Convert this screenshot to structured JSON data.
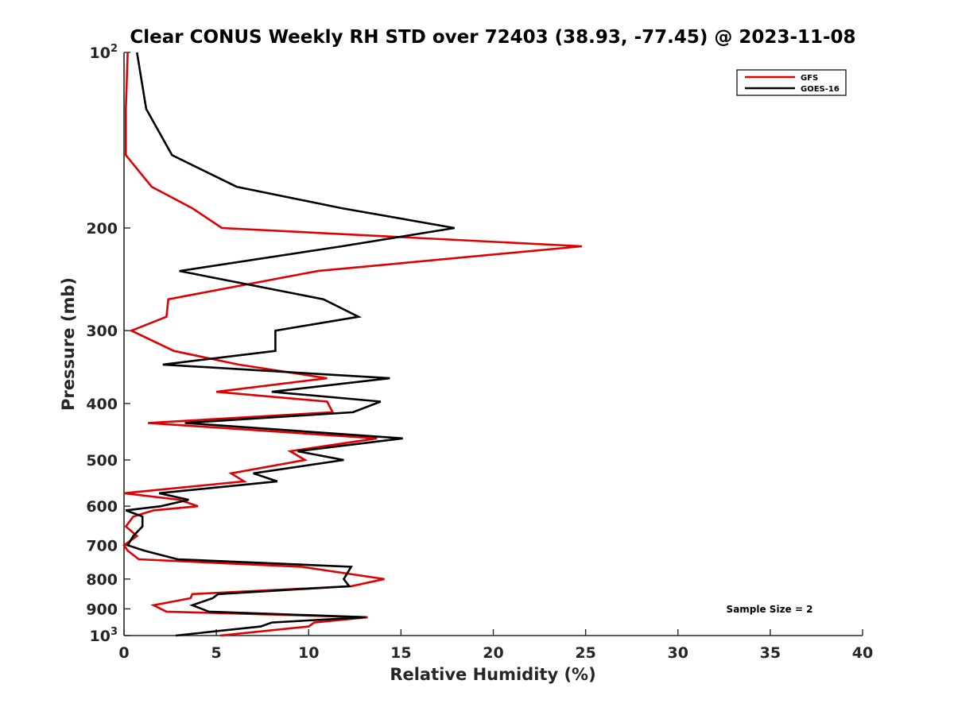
{
  "chart_data": {
    "type": "line",
    "orientation": "profile (x = relative humidity, y = pressure, y reversed, log scale)",
    "title": "Clear CONUS Weekly RH STD over 72403 (38.93, -77.45) @ 2023-11-08",
    "xlabel": "Relative Humidity (%)",
    "ylabel": "Pressure (mb)",
    "xlim": [
      0,
      40
    ],
    "ylim": [
      100,
      1000
    ],
    "y_scale": "log",
    "y_reversed": true,
    "x_ticks": [
      0,
      5,
      10,
      15,
      20,
      25,
      30,
      35,
      40
    ],
    "y_ticks": [
      100,
      200,
      300,
      400,
      500,
      600,
      700,
      800,
      900,
      1000
    ],
    "y_tick_labels": {
      "100": {
        "base": "10",
        "exp": "2"
      },
      "200": "200",
      "300": "300",
      "400": "400",
      "500": "500",
      "600": "600",
      "700": "700",
      "800": "800",
      "900": "900",
      "1000": {
        "base": "10",
        "exp": "3"
      }
    },
    "grid": false,
    "legend_position": "top-right",
    "annotation": "Sample Size = 2",
    "series": [
      {
        "name": "GFS",
        "color": "#e00000",
        "points": [
          [
            0.2,
            100
          ],
          [
            0.1,
            125
          ],
          [
            0.1,
            150
          ],
          [
            1.5,
            170
          ],
          [
            3.7,
            185
          ],
          [
            5.3,
            200
          ],
          [
            24.8,
            215
          ],
          [
            10.5,
            237
          ],
          [
            2.4,
            265
          ],
          [
            2.3,
            284
          ],
          [
            0.4,
            300
          ],
          [
            2.7,
            325
          ],
          [
            6.2,
            343
          ],
          [
            11.0,
            362
          ],
          [
            5.0,
            382
          ],
          [
            11.0,
            397
          ],
          [
            11.3,
            414
          ],
          [
            1.3,
            432
          ],
          [
            13.7,
            459
          ],
          [
            9.0,
            483
          ],
          [
            9.8,
            500
          ],
          [
            5.8,
            527
          ],
          [
            6.5,
            544
          ],
          [
            0.0,
            570
          ],
          [
            3.0,
            585
          ],
          [
            4.0,
            600
          ],
          [
            1.6,
            610
          ],
          [
            0.5,
            625
          ],
          [
            0.1,
            650
          ],
          [
            0.7,
            675
          ],
          [
            0.0,
            700
          ],
          [
            0.2,
            715
          ],
          [
            0.8,
            740
          ],
          [
            9.6,
            762
          ],
          [
            14.1,
            800
          ],
          [
            12.3,
            823
          ],
          [
            3.7,
            849
          ],
          [
            3.6,
            863
          ],
          [
            1.6,
            887
          ],
          [
            2.3,
            910
          ],
          [
            13.2,
            930
          ],
          [
            10.3,
            950
          ],
          [
            10.0,
            965
          ],
          [
            5.2,
            1000
          ]
        ]
      },
      {
        "name": "GOES-16",
        "color": "#000000",
        "points": [
          [
            0.7,
            100
          ],
          [
            1.2,
            125
          ],
          [
            2.6,
            150
          ],
          [
            6.1,
            170
          ],
          [
            11.8,
            185
          ],
          [
            17.9,
            200
          ],
          [
            11.8,
            215
          ],
          [
            3.0,
            237
          ],
          [
            10.8,
            265
          ],
          [
            12.7,
            284
          ],
          [
            8.2,
            300
          ],
          [
            8.2,
            325
          ],
          [
            2.1,
            343
          ],
          [
            14.4,
            362
          ],
          [
            8.0,
            382
          ],
          [
            13.9,
            397
          ],
          [
            12.4,
            414
          ],
          [
            3.3,
            432
          ],
          [
            15.1,
            459
          ],
          [
            9.4,
            483
          ],
          [
            11.9,
            500
          ],
          [
            7.0,
            527
          ],
          [
            8.3,
            544
          ],
          [
            1.9,
            570
          ],
          [
            3.5,
            585
          ],
          [
            2.0,
            600
          ],
          [
            0.1,
            610
          ],
          [
            1.0,
            625
          ],
          [
            1.0,
            650
          ],
          [
            0.5,
            675
          ],
          [
            0.2,
            700
          ],
          [
            1.1,
            715
          ],
          [
            2.9,
            740
          ],
          [
            12.3,
            762
          ],
          [
            11.9,
            800
          ],
          [
            12.2,
            823
          ],
          [
            5.1,
            849
          ],
          [
            4.8,
            863
          ],
          [
            3.7,
            887
          ],
          [
            4.6,
            910
          ],
          [
            13.1,
            930
          ],
          [
            8.0,
            950
          ],
          [
            7.4,
            965
          ],
          [
            2.8,
            1000
          ]
        ]
      }
    ]
  }
}
